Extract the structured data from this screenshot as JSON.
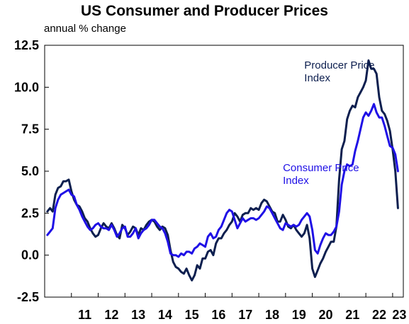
{
  "chart_data": {
    "type": "line",
    "title": "US Consumer and Producer Prices",
    "subtitle": "annual % change",
    "xlabel": "",
    "ylabel": "",
    "xlim": [
      2010.0,
      2023.4
    ],
    "ylim": [
      -2.5,
      12.5
    ],
    "yticks": [
      12.5,
      10.0,
      7.5,
      5.0,
      2.5,
      0.0,
      -2.5
    ],
    "ytick_labels": [
      "12.5",
      "10.0",
      "7.5",
      "5.0",
      "2.5",
      "0.0",
      "-2.5"
    ],
    "xtick_labels": [
      "11",
      "12",
      "13",
      "14",
      "15",
      "16",
      "17",
      "18",
      "19",
      "20",
      "21",
      "22",
      "23"
    ],
    "grid": false,
    "series": [
      {
        "name": "Producer Price Index",
        "color": "#0d1f4f",
        "points": [
          [
            2010.1,
            2.6
          ],
          [
            2010.2,
            2.8
          ],
          [
            2010.3,
            2.6
          ],
          [
            2010.4,
            3.6
          ],
          [
            2010.5,
            4.0
          ],
          [
            2010.6,
            4.1
          ],
          [
            2010.7,
            4.4
          ],
          [
            2010.8,
            4.4
          ],
          [
            2010.9,
            4.5
          ],
          [
            2011.0,
            3.8
          ],
          [
            2011.1,
            3.3
          ],
          [
            2011.2,
            3.0
          ],
          [
            2011.3,
            2.9
          ],
          [
            2011.4,
            2.6
          ],
          [
            2011.5,
            2.2
          ],
          [
            2011.6,
            2.0
          ],
          [
            2011.7,
            1.6
          ],
          [
            2011.8,
            1.3
          ],
          [
            2011.9,
            1.1
          ],
          [
            2012.0,
            1.2
          ],
          [
            2012.1,
            1.6
          ],
          [
            2012.2,
            1.9
          ],
          [
            2012.3,
            1.7
          ],
          [
            2012.4,
            1.6
          ],
          [
            2012.5,
            1.9
          ],
          [
            2012.6,
            1.6
          ],
          [
            2012.7,
            1.2
          ],
          [
            2012.8,
            1.0
          ],
          [
            2012.9,
            1.8
          ],
          [
            2013.0,
            1.6
          ],
          [
            2013.1,
            1.2
          ],
          [
            2013.2,
            1.4
          ],
          [
            2013.3,
            1.7
          ],
          [
            2013.4,
            1.6
          ],
          [
            2013.5,
            1.2
          ],
          [
            2013.6,
            1.6
          ],
          [
            2013.7,
            1.5
          ],
          [
            2013.8,
            1.8
          ],
          [
            2013.9,
            2.0
          ],
          [
            2014.0,
            2.1
          ],
          [
            2014.1,
            2.0
          ],
          [
            2014.2,
            1.7
          ],
          [
            2014.3,
            1.5
          ],
          [
            2014.4,
            1.7
          ],
          [
            2014.5,
            1.6
          ],
          [
            2014.6,
            1.2
          ],
          [
            2014.7,
            0.3
          ],
          [
            2014.8,
            -0.4
          ],
          [
            2014.9,
            -0.7
          ],
          [
            2015.0,
            -0.8
          ],
          [
            2015.1,
            -1.0
          ],
          [
            2015.2,
            -1.1
          ],
          [
            2015.3,
            -0.8
          ],
          [
            2015.4,
            -1.2
          ],
          [
            2015.5,
            -1.5
          ],
          [
            2015.6,
            -1.2
          ],
          [
            2015.7,
            -0.6
          ],
          [
            2015.8,
            -0.8
          ],
          [
            2015.9,
            -0.2
          ],
          [
            2016.0,
            -0.2
          ],
          [
            2016.1,
            0.2
          ],
          [
            2016.2,
            0.3
          ],
          [
            2016.3,
            0.0
          ],
          [
            2016.4,
            0.7
          ],
          [
            2016.5,
            1.0
          ],
          [
            2016.6,
            1.0
          ],
          [
            2016.7,
            1.3
          ],
          [
            2016.8,
            1.5
          ],
          [
            2016.9,
            1.8
          ],
          [
            2017.0,
            2.0
          ],
          [
            2017.1,
            2.5
          ],
          [
            2017.2,
            2.3
          ],
          [
            2017.3,
            2.0
          ],
          [
            2017.4,
            2.4
          ],
          [
            2017.5,
            2.5
          ],
          [
            2017.6,
            2.5
          ],
          [
            2017.7,
            2.8
          ],
          [
            2017.8,
            2.7
          ],
          [
            2017.9,
            2.8
          ],
          [
            2018.0,
            2.7
          ],
          [
            2018.1,
            3.1
          ],
          [
            2018.2,
            3.3
          ],
          [
            2018.3,
            3.2
          ],
          [
            2018.4,
            2.9
          ],
          [
            2018.5,
            2.6
          ],
          [
            2018.6,
            2.5
          ],
          [
            2018.7,
            2.0
          ],
          [
            2018.8,
            2.0
          ],
          [
            2018.9,
            2.4
          ],
          [
            2019.0,
            2.1
          ],
          [
            2019.1,
            1.7
          ],
          [
            2019.2,
            1.6
          ],
          [
            2019.3,
            1.8
          ],
          [
            2019.4,
            1.5
          ],
          [
            2019.5,
            1.3
          ],
          [
            2019.6,
            1.1
          ],
          [
            2019.7,
            1.3
          ],
          [
            2019.8,
            1.8
          ],
          [
            2019.9,
            1.0
          ],
          [
            2020.0,
            -0.8
          ],
          [
            2020.1,
            -1.3
          ],
          [
            2020.2,
            -0.9
          ],
          [
            2020.3,
            -0.5
          ],
          [
            2020.4,
            -0.2
          ],
          [
            2020.5,
            0.2
          ],
          [
            2020.6,
            0.5
          ],
          [
            2020.7,
            0.8
          ],
          [
            2020.8,
            0.8
          ],
          [
            2020.9,
            1.7
          ],
          [
            2021.0,
            4.5
          ],
          [
            2021.1,
            6.3
          ],
          [
            2021.2,
            6.8
          ],
          [
            2021.3,
            8.1
          ],
          [
            2021.4,
            8.6
          ],
          [
            2021.5,
            8.9
          ],
          [
            2021.6,
            8.8
          ],
          [
            2021.7,
            9.4
          ],
          [
            2021.8,
            9.7
          ],
          [
            2021.9,
            10.0
          ],
          [
            2022.0,
            10.4
          ],
          [
            2022.1,
            11.6
          ],
          [
            2022.2,
            11.1
          ],
          [
            2022.3,
            11.1
          ],
          [
            2022.4,
            10.8
          ],
          [
            2022.5,
            9.4
          ],
          [
            2022.6,
            8.6
          ],
          [
            2022.7,
            8.4
          ],
          [
            2022.8,
            8.0
          ],
          [
            2022.9,
            7.4
          ],
          [
            2023.0,
            6.3
          ],
          [
            2023.1,
            5.0
          ],
          [
            2023.2,
            2.8
          ]
        ]
      },
      {
        "name": "Consumer Price Index",
        "color": "#1f10e6",
        "points": [
          [
            2010.1,
            1.2
          ],
          [
            2010.2,
            1.4
          ],
          [
            2010.3,
            1.6
          ],
          [
            2010.4,
            2.8
          ],
          [
            2010.5,
            3.3
          ],
          [
            2010.6,
            3.6
          ],
          [
            2010.7,
            3.7
          ],
          [
            2010.8,
            3.8
          ],
          [
            2010.9,
            3.9
          ],
          [
            2011.0,
            3.6
          ],
          [
            2011.1,
            3.5
          ],
          [
            2011.2,
            3.0
          ],
          [
            2011.3,
            2.7
          ],
          [
            2011.4,
            2.3
          ],
          [
            2011.5,
            2.0
          ],
          [
            2011.6,
            1.7
          ],
          [
            2011.7,
            1.5
          ],
          [
            2011.8,
            1.6
          ],
          [
            2011.9,
            1.8
          ],
          [
            2012.0,
            1.9
          ],
          [
            2012.1,
            1.7
          ],
          [
            2012.2,
            1.6
          ],
          [
            2012.3,
            1.6
          ],
          [
            2012.4,
            1.5
          ],
          [
            2012.5,
            1.8
          ],
          [
            2012.6,
            1.5
          ],
          [
            2012.7,
            1.1
          ],
          [
            2012.8,
            1.3
          ],
          [
            2012.9,
            1.6
          ],
          [
            2013.0,
            1.7
          ],
          [
            2013.1,
            1.1
          ],
          [
            2013.2,
            1.1
          ],
          [
            2013.3,
            1.3
          ],
          [
            2013.4,
            1.6
          ],
          [
            2013.5,
            1.0
          ],
          [
            2013.6,
            1.3
          ],
          [
            2013.7,
            1.5
          ],
          [
            2013.8,
            1.6
          ],
          [
            2013.9,
            1.8
          ],
          [
            2014.0,
            2.1
          ],
          [
            2014.1,
            2.1
          ],
          [
            2014.2,
            1.9
          ],
          [
            2014.3,
            1.7
          ],
          [
            2014.4,
            1.6
          ],
          [
            2014.5,
            1.3
          ],
          [
            2014.6,
            0.8
          ],
          [
            2014.7,
            0.1
          ],
          [
            2014.8,
            0.0
          ],
          [
            2014.9,
            0.0
          ],
          [
            2015.0,
            -0.1
          ],
          [
            2015.1,
            0.1
          ],
          [
            2015.2,
            0.0
          ],
          [
            2015.3,
            0.2
          ],
          [
            2015.4,
            0.2
          ],
          [
            2015.5,
            0.1
          ],
          [
            2015.6,
            0.4
          ],
          [
            2015.7,
            0.5
          ],
          [
            2015.8,
            0.7
          ],
          [
            2015.9,
            0.6
          ],
          [
            2016.0,
            0.5
          ],
          [
            2016.1,
            1.1
          ],
          [
            2016.2,
            1.3
          ],
          [
            2016.3,
            1.0
          ],
          [
            2016.4,
            1.1
          ],
          [
            2016.5,
            1.5
          ],
          [
            2016.6,
            1.7
          ],
          [
            2016.7,
            2.1
          ],
          [
            2016.8,
            2.5
          ],
          [
            2016.9,
            2.7
          ],
          [
            2017.0,
            2.6
          ],
          [
            2017.1,
            2.1
          ],
          [
            2017.2,
            1.6
          ],
          [
            2017.3,
            1.9
          ],
          [
            2017.4,
            2.2
          ],
          [
            2017.5,
            2.0
          ],
          [
            2017.6,
            2.1
          ],
          [
            2017.7,
            2.2
          ],
          [
            2017.8,
            2.2
          ],
          [
            2017.9,
            2.1
          ],
          [
            2018.0,
            2.2
          ],
          [
            2018.1,
            2.4
          ],
          [
            2018.2,
            2.6
          ],
          [
            2018.3,
            2.9
          ],
          [
            2018.4,
            2.8
          ],
          [
            2018.5,
            2.5
          ],
          [
            2018.6,
            2.2
          ],
          [
            2018.7,
            1.9
          ],
          [
            2018.8,
            1.6
          ],
          [
            2018.9,
            1.5
          ],
          [
            2019.0,
            1.9
          ],
          [
            2019.1,
            1.8
          ],
          [
            2019.2,
            1.7
          ],
          [
            2019.3,
            1.8
          ],
          [
            2019.4,
            1.7
          ],
          [
            2019.5,
            1.8
          ],
          [
            2019.6,
            2.1
          ],
          [
            2019.7,
            2.3
          ],
          [
            2019.8,
            2.5
          ],
          [
            2019.9,
            2.3
          ],
          [
            2020.0,
            1.5
          ],
          [
            2020.1,
            0.3
          ],
          [
            2020.2,
            0.1
          ],
          [
            2020.3,
            0.6
          ],
          [
            2020.4,
            1.0
          ],
          [
            2020.5,
            1.3
          ],
          [
            2020.6,
            1.2
          ],
          [
            2020.7,
            1.2
          ],
          [
            2020.8,
            1.4
          ],
          [
            2020.9,
            1.7
          ],
          [
            2021.0,
            2.6
          ],
          [
            2021.1,
            4.2
          ],
          [
            2021.2,
            5.0
          ],
          [
            2021.3,
            5.4
          ],
          [
            2021.4,
            5.3
          ],
          [
            2021.5,
            5.4
          ],
          [
            2021.6,
            6.2
          ],
          [
            2021.7,
            6.8
          ],
          [
            2021.8,
            7.5
          ],
          [
            2021.9,
            8.2
          ],
          [
            2022.0,
            8.5
          ],
          [
            2022.1,
            8.3
          ],
          [
            2022.2,
            8.6
          ],
          [
            2022.3,
            9.0
          ],
          [
            2022.4,
            8.5
          ],
          [
            2022.5,
            8.2
          ],
          [
            2022.6,
            8.2
          ],
          [
            2022.7,
            7.7
          ],
          [
            2022.8,
            7.1
          ],
          [
            2022.9,
            6.5
          ],
          [
            2023.0,
            6.4
          ],
          [
            2023.1,
            6.0
          ],
          [
            2023.2,
            5.0
          ]
        ]
      }
    ],
    "annotations": [
      {
        "lines": [
          "Producer Price",
          "Index"
        ],
        "color": "#0d1f4f",
        "x": 2019.7,
        "y": 11.1
      },
      {
        "lines": [
          "Consumer Price",
          "Index"
        ],
        "color": "#1f10e6",
        "x": 2018.9,
        "y": 5.0
      }
    ]
  }
}
